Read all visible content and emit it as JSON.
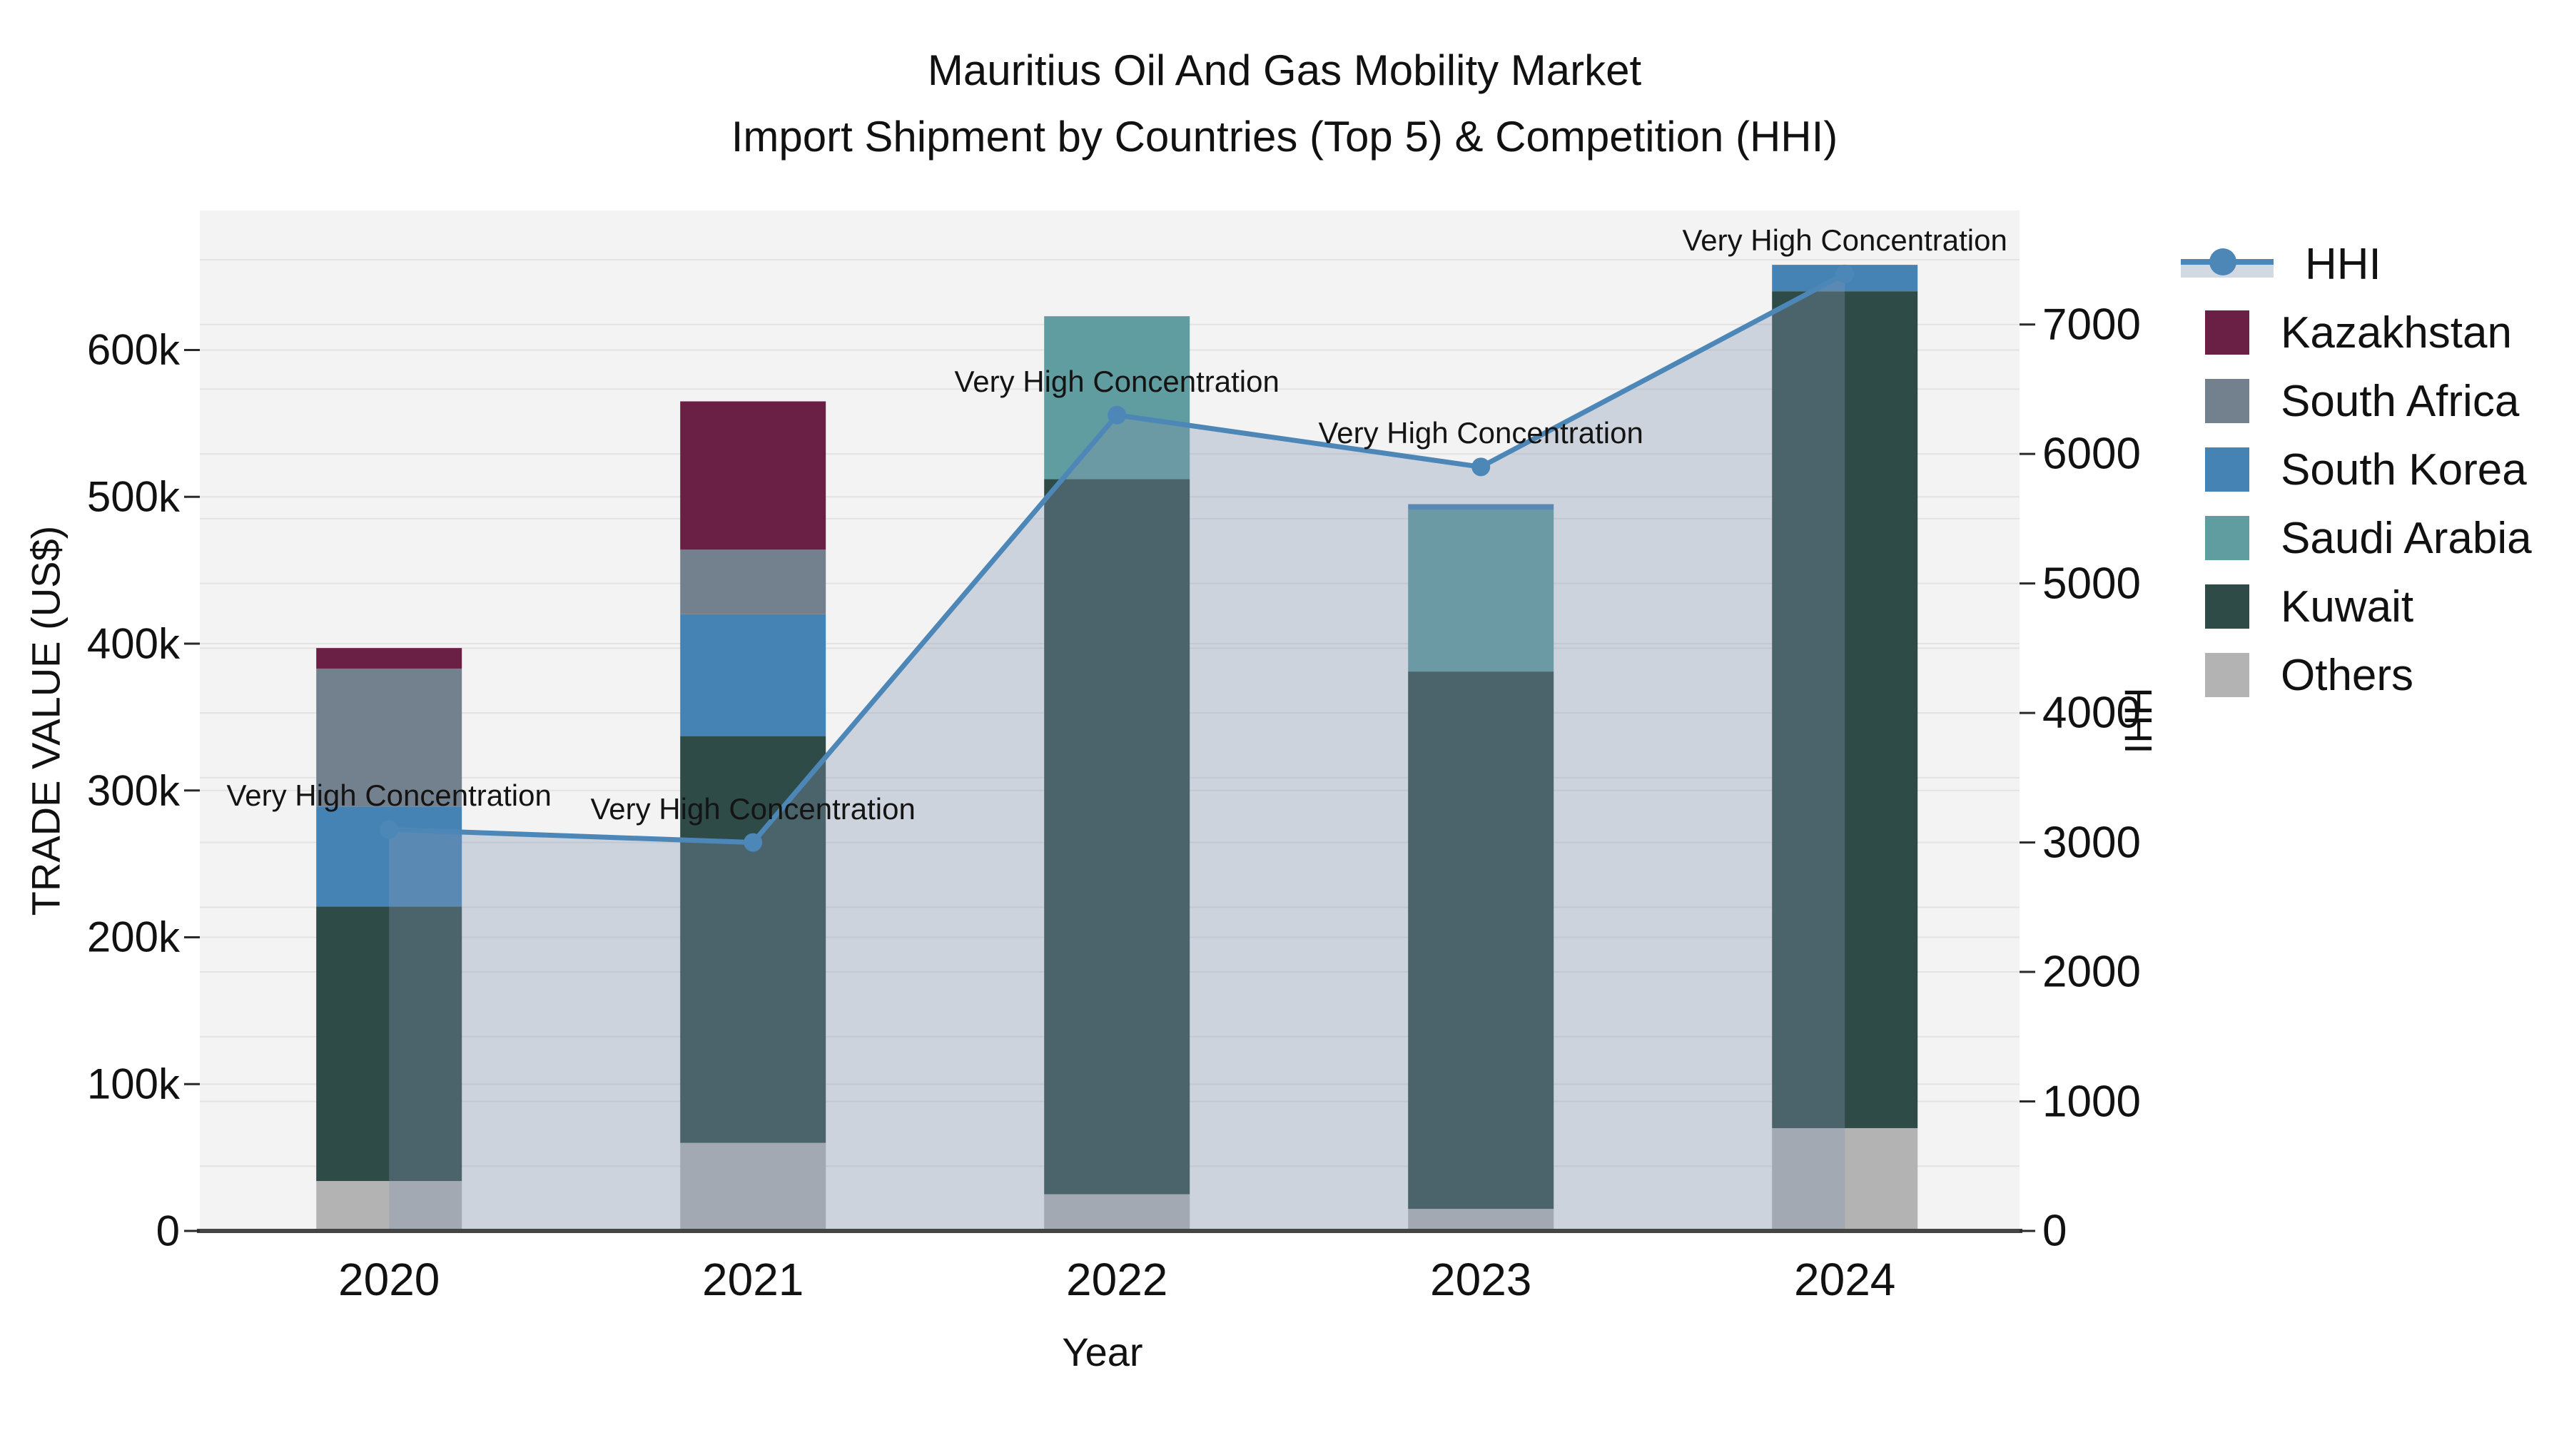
{
  "title": {
    "line1": "Mauritius Oil And Gas Mobility Market",
    "line2": "Import Shipment by Countries (Top 5) & Competition (HHI)"
  },
  "axes": {
    "x": {
      "label": "Year"
    },
    "y_left": {
      "label": "TRADE VALUE (US$)",
      "tick_labels": [
        "0",
        "100k",
        "200k",
        "300k",
        "400k",
        "500k",
        "600k"
      ],
      "tick_values": [
        0,
        100000,
        200000,
        300000,
        400000,
        500000,
        600000
      ],
      "range": [
        0,
        695000
      ]
    },
    "y_right": {
      "label": "HHI",
      "tick_labels": [
        "0",
        "1000",
        "2000",
        "3000",
        "4000",
        "5000",
        "6000",
        "7000"
      ],
      "tick_values": [
        0,
        1000,
        2000,
        3000,
        4000,
        5000,
        6000,
        7000
      ],
      "range": [
        0,
        7880
      ],
      "grid_step": 500
    }
  },
  "style": {
    "plot_bg": "#f3f3f3",
    "grid_color": "#e3e3e3",
    "spine_color": "#454545",
    "tick_color": "#2a2a2a",
    "hhi_line_color": "#4d87b8",
    "hhi_area_fill": "rgba(131,149,175,0.34)"
  },
  "legend": {
    "entries": [
      {
        "label": "HHI",
        "type": "line",
        "color": "#4d87b8"
      },
      {
        "label": "Kazakhstan",
        "type": "patch",
        "color": "#6a1f44"
      },
      {
        "label": "South Africa",
        "type": "patch",
        "color": "#73818f"
      },
      {
        "label": "South Korea",
        "type": "patch",
        "color": "#4583b5"
      },
      {
        "label": "Saudi Arabia",
        "type": "patch",
        "color": "#5f9da0"
      },
      {
        "label": "Kuwait",
        "type": "patch",
        "color": "#2e4b48"
      },
      {
        "label": "Others",
        "type": "patch",
        "color": "#b3b3b3"
      }
    ]
  },
  "chart_data": {
    "type": "bar+line",
    "title": "Mauritius Oil And Gas Mobility Market — Import Shipment by Countries (Top 5) & Competition (HHI)",
    "xlabel": "Year",
    "ylabel_left": "TRADE VALUE (US$)",
    "ylabel_right": "HHI",
    "categories": [
      "2020",
      "2021",
      "2022",
      "2023",
      "2024"
    ],
    "stack_order_bottom_to_top": [
      "Others",
      "Kuwait",
      "Saudi Arabia",
      "South Korea",
      "South Africa",
      "Kazakhstan"
    ],
    "series": [
      {
        "name": "Others",
        "color": "#b3b3b3",
        "values": [
          34000,
          60000,
          25000,
          15000,
          70000
        ]
      },
      {
        "name": "Kuwait",
        "color": "#2e4b48",
        "values": [
          187000,
          277000,
          487000,
          366000,
          570000
        ]
      },
      {
        "name": "Saudi Arabia",
        "color": "#5f9da0",
        "values": [
          0,
          0,
          111000,
          110000,
          0
        ]
      },
      {
        "name": "South Korea",
        "color": "#4583b5",
        "values": [
          68000,
          83000,
          0,
          4000,
          18000
        ]
      },
      {
        "name": "South Africa",
        "color": "#73818f",
        "values": [
          94000,
          44000,
          0,
          0,
          0
        ]
      },
      {
        "name": "Kazakhstan",
        "color": "#6a1f44",
        "values": [
          14000,
          101000,
          0,
          0,
          0
        ]
      }
    ],
    "bar_totals": [
      397000,
      565000,
      623000,
      495000,
      658000
    ],
    "line_series": {
      "name": "HHI",
      "axis": "right",
      "values": [
        3100,
        3000,
        6300,
        5900,
        7390
      ]
    },
    "annotations": [
      {
        "year": "2020",
        "text": "Very High Concentration"
      },
      {
        "year": "2021",
        "text": "Very High Concentration"
      },
      {
        "year": "2022",
        "text": "Very High Concentration"
      },
      {
        "year": "2023",
        "text": "Very High Concentration"
      },
      {
        "year": "2024",
        "text": "Very High Concentration"
      }
    ],
    "ylim_left": [
      0,
      695000
    ],
    "ylim_right": [
      0,
      7880
    ],
    "grid": true,
    "legend_position": "right"
  }
}
